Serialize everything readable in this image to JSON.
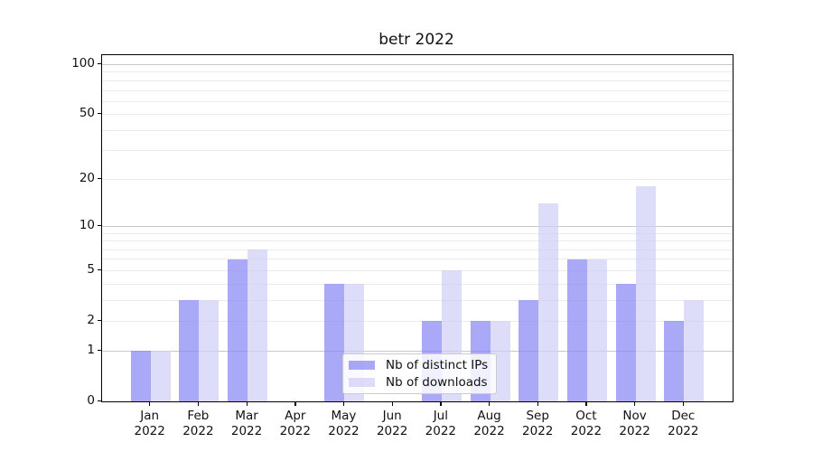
{
  "title": "betr 2022",
  "chart_data": {
    "type": "bar",
    "title": "betr 2022",
    "categories": [
      "Jan",
      "Feb",
      "Mar",
      "Apr",
      "May",
      "Jun",
      "Jul",
      "Aug",
      "Sep",
      "Oct",
      "Nov",
      "Dec"
    ],
    "year_label": "2022",
    "series": [
      {
        "name": "Nb of distinct IPs",
        "color": "#a6a6f5",
        "fill": "rgba(132,132,243,0.7)",
        "values": [
          1,
          3,
          6,
          0,
          4,
          0,
          2,
          2,
          3,
          6,
          4,
          2
        ]
      },
      {
        "name": "Nb of downloads",
        "color": "#dcdcf9",
        "fill": "rgba(206,206,247,0.7)",
        "values": [
          1,
          3,
          7,
          0,
          4,
          0,
          5,
          2,
          14,
          6,
          18,
          3
        ]
      }
    ],
    "xlabel": "",
    "ylabel": "",
    "yscale": "log1p",
    "ylim": [
      0,
      115
    ],
    "yticks": [
      0,
      1,
      2,
      5,
      10,
      20,
      50,
      100
    ],
    "major_gridline_values": [
      1,
      10,
      100
    ],
    "minor_gridline_values": [
      2,
      3,
      4,
      5,
      6,
      7,
      8,
      9,
      20,
      30,
      40,
      50,
      60,
      70,
      80,
      90
    ],
    "grid": true,
    "legend_position": "lower center",
    "colors": {
      "spine": "#000000",
      "major_grid": "#c9c9c9",
      "minor_grid": "#ebebeb",
      "background": "#ffffff",
      "legend_border": "#cccccc"
    }
  }
}
